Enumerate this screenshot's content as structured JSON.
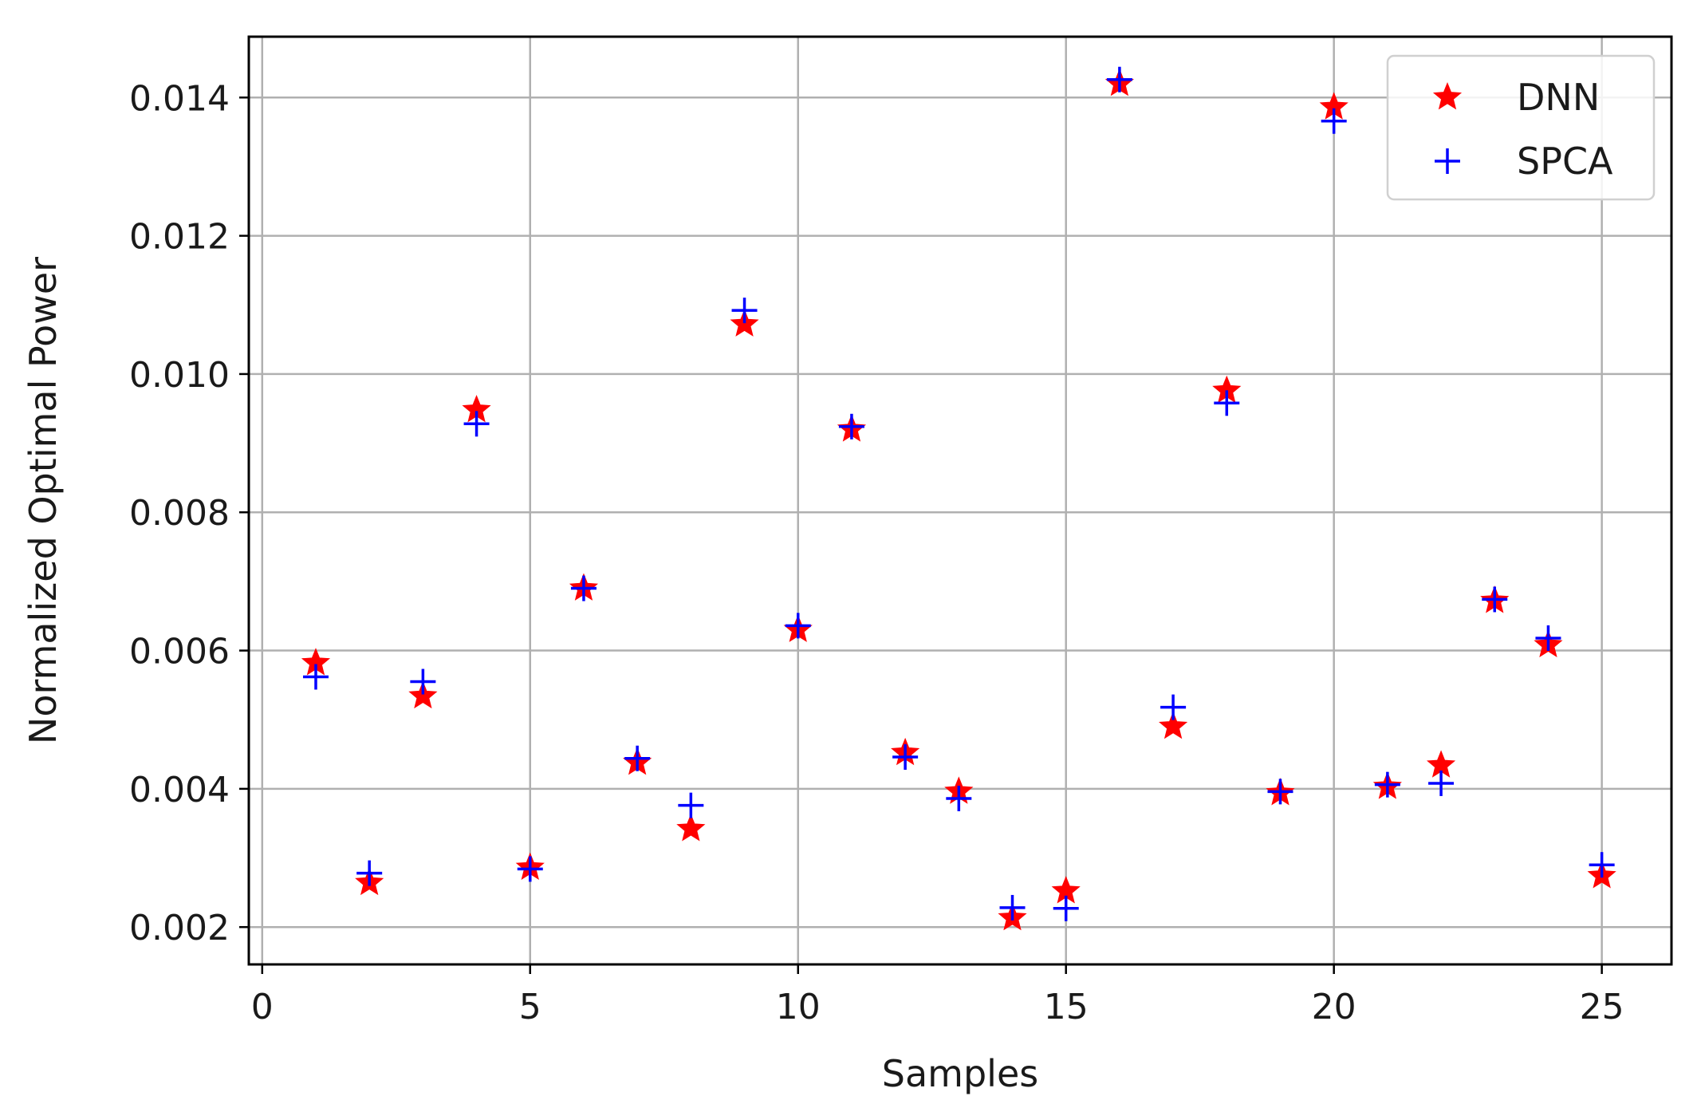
{
  "chart_data": {
    "type": "scatter",
    "title": "",
    "xlabel": "Samples",
    "ylabel": "Normalized Optimal Power",
    "xlim": [
      -0.25,
      26.3
    ],
    "ylim": [
      0.00146,
      0.01488
    ],
    "xticks": [
      0,
      5,
      10,
      15,
      20,
      25
    ],
    "xtick_labels": [
      "0",
      "5",
      "10",
      "15",
      "20",
      "25"
    ],
    "yticks": [
      0.002,
      0.004,
      0.006,
      0.008,
      0.01,
      0.012,
      0.014
    ],
    "ytick_labels": [
      "0.002",
      "0.004",
      "0.006",
      "0.008",
      "0.010",
      "0.012",
      "0.014"
    ],
    "grid": true,
    "legend": {
      "position": "top-right"
    },
    "x": [
      1,
      2,
      3,
      4,
      5,
      6,
      7,
      8,
      9,
      10,
      11,
      12,
      13,
      14,
      15,
      16,
      17,
      18,
      19,
      20,
      21,
      22,
      23,
      24,
      25
    ],
    "series": [
      {
        "name": "DNN",
        "marker": "star",
        "color": "#ff0000",
        "values": [
          0.00582,
          0.00264,
          0.00534,
          0.00948,
          0.00286,
          0.0069,
          0.00438,
          0.00342,
          0.01072,
          0.0063,
          0.0092,
          0.00452,
          0.00396,
          0.00213,
          0.00252,
          0.0142,
          0.0049,
          0.00976,
          0.00394,
          0.01386,
          0.00403,
          0.00434,
          0.00672,
          0.00608,
          0.00274
        ]
      },
      {
        "name": "SPCA",
        "marker": "plus",
        "color": "#0000ff",
        "values": [
          0.00562,
          0.00278,
          0.00555,
          0.00928,
          0.00284,
          0.0069,
          0.00444,
          0.00376,
          0.01092,
          0.00636,
          0.00924,
          0.00446,
          0.00386,
          0.00228,
          0.00227,
          0.01426,
          0.00518,
          0.00958,
          0.00396,
          0.01366,
          0.00406,
          0.00408,
          0.00674,
          0.00618,
          0.0029
        ]
      }
    ]
  }
}
